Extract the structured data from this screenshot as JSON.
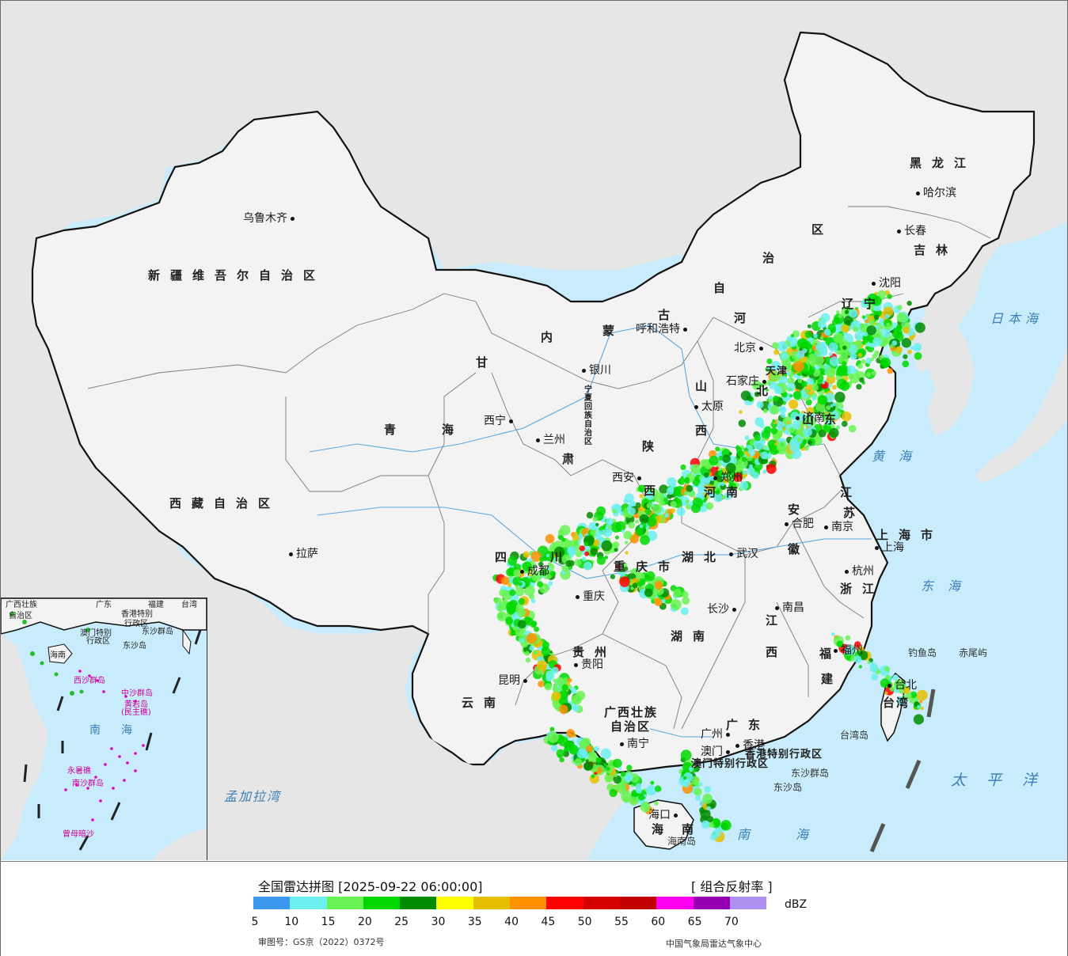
{
  "map": {
    "provinces": [
      {
        "id": "xinjiang",
        "text": "新疆维吾尔自治区"
      },
      {
        "id": "xizang",
        "text": "西藏自治区"
      },
      {
        "id": "qinghai-1",
        "text": "青"
      },
      {
        "id": "qinghai-2",
        "text": "海"
      },
      {
        "id": "gansu",
        "text": "甘"
      },
      {
        "id": "neimenggu-nei",
        "text": "内"
      },
      {
        "id": "neimenggu-meng",
        "text": "蒙"
      },
      {
        "id": "neimenggu-gu",
        "text": "古"
      },
      {
        "id": "neimenggu-zi",
        "text": "自"
      },
      {
        "id": "neimenggu-zhi",
        "text": "治"
      },
      {
        "id": "neimenggu-qu",
        "text": "区"
      },
      {
        "id": "heilongjiang",
        "text": "黑龙江"
      },
      {
        "id": "jilin",
        "text": "吉林"
      },
      {
        "id": "liaoning",
        "text": "辽宁"
      },
      {
        "id": "hebei-he",
        "text": "河"
      },
      {
        "id": "hebei-bei",
        "text": "北"
      },
      {
        "id": "shanxi-shan",
        "text": "山"
      },
      {
        "id": "shanxi-xi",
        "text": "西"
      },
      {
        "id": "shaanxi-shan",
        "text": "陕"
      },
      {
        "id": "shaanxi-xi",
        "text": "西"
      },
      {
        "id": "henan",
        "text": "河南"
      },
      {
        "id": "shandong",
        "text": "山东"
      },
      {
        "id": "jiangsu-jiang",
        "text": "江"
      },
      {
        "id": "jiangsu-su",
        "text": "苏"
      },
      {
        "id": "anhui-an",
        "text": "安"
      },
      {
        "id": "anhui-hui",
        "text": "徽"
      },
      {
        "id": "shanghai",
        "text": "上海市"
      },
      {
        "id": "zhejiang",
        "text": "浙江"
      },
      {
        "id": "hubei",
        "text": "湖北"
      },
      {
        "id": "hunan",
        "text": "湖南"
      },
      {
        "id": "jiangxi-jiang",
        "text": "江"
      },
      {
        "id": "jiangxi-xi",
        "text": "西"
      },
      {
        "id": "fujian-fu",
        "text": "福"
      },
      {
        "id": "fujian-jian",
        "text": "建"
      },
      {
        "id": "sichuan-si",
        "text": "四"
      },
      {
        "id": "sichuan-chuan",
        "text": "川"
      },
      {
        "id": "chongqing",
        "text": "重庆市"
      },
      {
        "id": "guizhou",
        "text": "贵州"
      },
      {
        "id": "yunnan",
        "text": "云南"
      },
      {
        "id": "guangxi-1",
        "text": "广西壮族"
      },
      {
        "id": "guangxi-2",
        "text": "自治区"
      },
      {
        "id": "guangdong",
        "text": "广东"
      },
      {
        "id": "taiwan",
        "text": "台湾"
      },
      {
        "id": "hainan-hai",
        "text": "海"
      },
      {
        "id": "hainan-nan",
        "text": "南"
      },
      {
        "id": "ningxia",
        "text": "宁夏回族自治区"
      },
      {
        "id": "hongkong",
        "text": "香港特别行政区"
      },
      {
        "id": "macau",
        "text": "澳门特别行政区"
      },
      {
        "id": "tianjin",
        "text": "天津"
      },
      {
        "id": "gansu-2",
        "text": "肃"
      }
    ],
    "cities": [
      {
        "id": "urumqi",
        "text": "乌鲁木齐"
      },
      {
        "id": "lhasa",
        "text": "拉萨"
      },
      {
        "id": "xining",
        "text": "西宁"
      },
      {
        "id": "lanzhou",
        "text": "兰州"
      },
      {
        "id": "yinchuan",
        "text": "银川"
      },
      {
        "id": "hohhot",
        "text": "呼和浩特"
      },
      {
        "id": "beijing",
        "text": "北京"
      },
      {
        "id": "shijiazhuang",
        "text": "石家庄"
      },
      {
        "id": "taiyuan",
        "text": "太原"
      },
      {
        "id": "xian",
        "text": "西安"
      },
      {
        "id": "zhengzhou",
        "text": "郑州"
      },
      {
        "id": "jinan",
        "text": "济南"
      },
      {
        "id": "harbin",
        "text": "哈尔滨"
      },
      {
        "id": "changchun",
        "text": "长春"
      },
      {
        "id": "shenyang",
        "text": "沈阳"
      },
      {
        "id": "hefei",
        "text": "合肥"
      },
      {
        "id": "nanjing",
        "text": "南京"
      },
      {
        "id": "shanghai-c",
        "text": "上海"
      },
      {
        "id": "hangzhou",
        "text": "杭州"
      },
      {
        "id": "wuhan",
        "text": "武汉"
      },
      {
        "id": "changsha",
        "text": "长沙"
      },
      {
        "id": "nanchang",
        "text": "南昌"
      },
      {
        "id": "fuzhou",
        "text": "福州"
      },
      {
        "id": "chengdu",
        "text": "成都"
      },
      {
        "id": "chongqing-c",
        "text": "重庆"
      },
      {
        "id": "guiyang",
        "text": "贵阳"
      },
      {
        "id": "kunming",
        "text": "昆明"
      },
      {
        "id": "nanning",
        "text": "南宁"
      },
      {
        "id": "guangzhou",
        "text": "广州"
      },
      {
        "id": "hongkong-c",
        "text": "香港"
      },
      {
        "id": "macau-c",
        "text": "澳门"
      },
      {
        "id": "haikou",
        "text": "海口"
      },
      {
        "id": "taibei",
        "text": "台北"
      },
      {
        "id": "tianjin-c",
        "text": "天津"
      }
    ],
    "seas": [
      {
        "id": "sea-japan",
        "text": "日本海"
      },
      {
        "id": "sea-yellow",
        "text": "黄海"
      },
      {
        "id": "sea-east",
        "text": "东海"
      },
      {
        "id": "sea-pacific",
        "text": "太平洋"
      },
      {
        "id": "sea-south",
        "text": "南海"
      },
      {
        "id": "sea-bengal",
        "text": "孟加拉湾"
      }
    ],
    "islands": [
      {
        "id": "diaoyu",
        "text": "钓鱼岛"
      },
      {
        "id": "chiwei",
        "text": "赤尾屿"
      },
      {
        "id": "dongsha-qundao",
        "text": "东沙群岛"
      },
      {
        "id": "dongsha-dao",
        "text": "东沙岛"
      },
      {
        "id": "taiwan-dao",
        "text": "台湾岛"
      },
      {
        "id": "hainan-dao",
        "text": "海南岛"
      }
    ],
    "inset": {
      "labels": [
        {
          "id": "i-guangxi",
          "text": "广西壮族"
        },
        {
          "id": "i-zizhiqu",
          "text": "自治区"
        },
        {
          "id": "i-guangdong",
          "text": "广东"
        },
        {
          "id": "i-fujian",
          "text": "福建"
        },
        {
          "id": "i-taiwan",
          "text": "台湾"
        },
        {
          "id": "i-hk",
          "text": "香港特别"
        },
        {
          "id": "i-hk2",
          "text": "行政区"
        },
        {
          "id": "i-macau",
          "text": "澳门特别"
        },
        {
          "id": "i-macau2",
          "text": "行政区"
        },
        {
          "id": "i-dongsha",
          "text": "东沙群岛"
        },
        {
          "id": "i-dongshadao",
          "text": "东沙岛"
        },
        {
          "id": "i-hainan",
          "text": "海南"
        },
        {
          "id": "i-xisha",
          "text": "西沙群岛"
        },
        {
          "id": "i-zhongsha",
          "text": "中沙群岛"
        },
        {
          "id": "i-huangyan",
          "text": "黄岩岛"
        },
        {
          "id": "i-minzhu",
          "text": "(民主礁)"
        },
        {
          "id": "i-nanhai-nan",
          "text": "南"
        },
        {
          "id": "i-nanhai-hai",
          "text": "海"
        },
        {
          "id": "i-nansha",
          "text": "南沙群岛"
        },
        {
          "id": "i-yongshu",
          "text": "永暑礁"
        },
        {
          "id": "i-zengmu",
          "text": "曾母暗沙"
        }
      ]
    },
    "colors": {
      "sea": "#c8ecfb",
      "land": "#f1f1f1",
      "foreign_land": "#e6e6e6",
      "border": "#111111"
    }
  },
  "legend": {
    "title": "全国雷达拼图 [2025-09-22 06:00:00]",
    "product": "[ 组合反射率 ]",
    "unit": "dBZ",
    "ticks": [
      "5",
      "10",
      "15",
      "20",
      "25",
      "30",
      "35",
      "40",
      "45",
      "50",
      "55",
      "60",
      "65",
      "70"
    ],
    "colors": [
      "#3d99ef",
      "#6cefef",
      "#67f352",
      "#00d800",
      "#008c00",
      "#ffff00",
      "#e6c000",
      "#ff9000",
      "#ff0000",
      "#d40000",
      "#c00000",
      "#ff00f0",
      "#9600b4",
      "#ae90f0"
    ],
    "review_number": "审图号：GS京（2022）0372号",
    "organization": "中国气象局雷达气象中心"
  }
}
